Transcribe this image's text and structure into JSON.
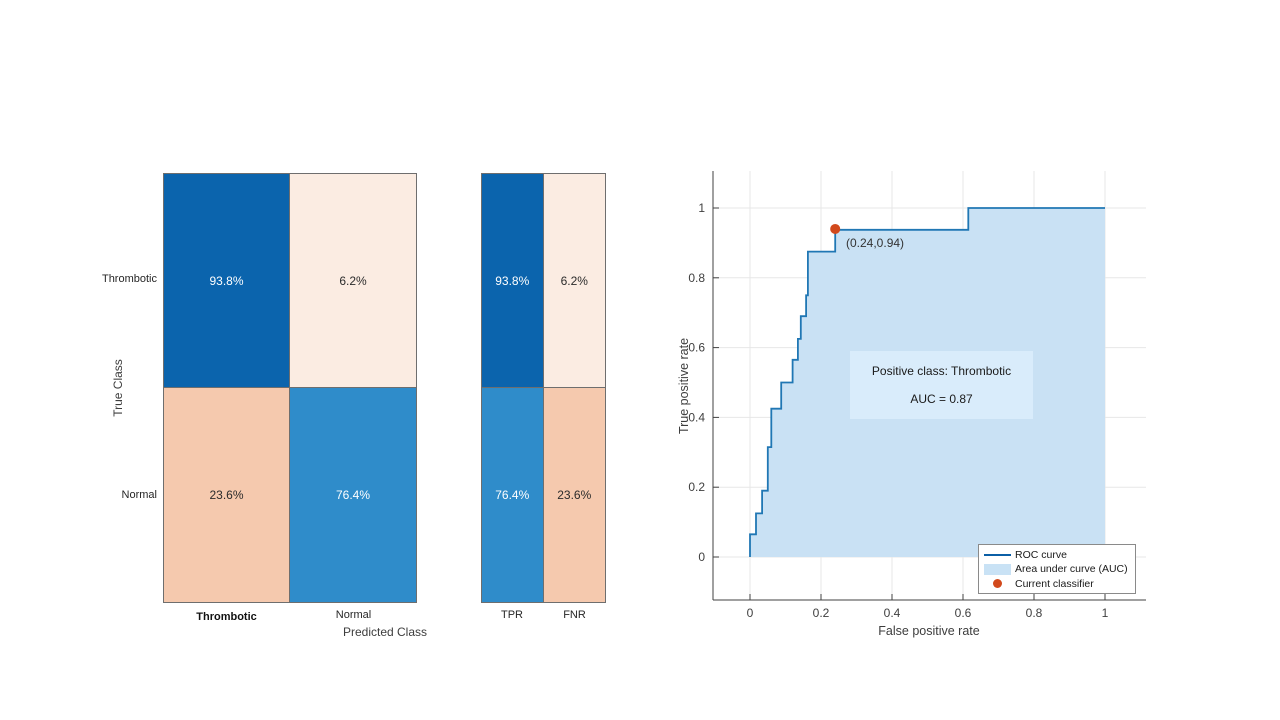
{
  "confusion_chart": {
    "ylabel": "True Class",
    "xlabel": "Predicted Class",
    "row_labels": [
      "Thrombotic",
      "Normal"
    ],
    "col_labels": [
      "Thrombotic",
      "Normal"
    ],
    "cells": [
      [
        {
          "text": "93.8%",
          "bg": "#0b64ad",
          "fg": "#ffffff"
        },
        {
          "text": "6.2%",
          "bg": "#fbece2",
          "fg": "#2b2b2b"
        }
      ],
      [
        {
          "text": "23.6%",
          "bg": "#f5c9ae",
          "fg": "#2b2b2b"
        },
        {
          "text": "76.4%",
          "bg": "#2f8cca",
          "fg": "#ffffff"
        }
      ]
    ]
  },
  "summary_chart": {
    "col_labels": [
      "TPR",
      "FNR"
    ],
    "cells": [
      [
        {
          "text": "93.8%",
          "bg": "#0b64ad",
          "fg": "#ffffff"
        },
        {
          "text": "6.2%",
          "bg": "#fbece2",
          "fg": "#2b2b2b"
        }
      ],
      [
        {
          "text": "76.4%",
          "bg": "#2f8cca",
          "fg": "#ffffff"
        },
        {
          "text": "23.6%",
          "bg": "#f5c9ae",
          "fg": "#2b2b2b"
        }
      ]
    ]
  },
  "roc_chart": {
    "xlabel": "False positive rate",
    "ylabel": "True positive rate",
    "marker_label": "(0.24,0.94)",
    "info_line1": "Positive class: Thrombotic",
    "info_line2": "AUC = 0.87",
    "legend": [
      {
        "icon": "line-icon",
        "label": "ROC curve"
      },
      {
        "icon": "patch-icon",
        "label": "Area under curve (AUC)"
      },
      {
        "icon": "dot-icon",
        "label": "Current classifier"
      }
    ],
    "colors": {
      "curve_line": "#2077b4",
      "area_fill": "#c9e1f4",
      "marker": "#d2491c",
      "grid": "#e7e7e7",
      "axis": "#424242",
      "tick_text": "#3f3f3f",
      "info_box_bg": "#d9ecfb"
    }
  },
  "chart_data": [
    {
      "type": "heatmap",
      "name": "confusion-matrix",
      "xlabel": "Predicted Class",
      "ylabel": "True Class",
      "x_categories": [
        "Thrombotic",
        "Normal"
      ],
      "y_categories": [
        "Thrombotic",
        "Normal"
      ],
      "values_percent": [
        [
          93.8,
          6.2
        ],
        [
          23.6,
          76.4
        ]
      ]
    },
    {
      "type": "heatmap",
      "name": "row-summary-tpr-fnr",
      "x_categories": [
        "TPR",
        "FNR"
      ],
      "y_categories": [
        "Thrombotic",
        "Normal"
      ],
      "values_percent": [
        [
          93.8,
          6.2
        ],
        [
          76.4,
          23.6
        ]
      ]
    },
    {
      "type": "line",
      "name": "roc-curve",
      "title": "",
      "xlabel": "False positive rate",
      "ylabel": "True positive rate",
      "xlim": [
        -0.1,
        1.12
      ],
      "ylim": [
        -0.12,
        1.1
      ],
      "xticks": [
        0,
        0.2,
        0.4,
        0.6,
        0.8,
        1
      ],
      "yticks": [
        0,
        0.2,
        0.4,
        0.6,
        0.8,
        1
      ],
      "grid": true,
      "legend_position": "bottom-right-inside",
      "positive_class": "Thrombotic",
      "auc": 0.87,
      "current_classifier": {
        "fpr": 0.24,
        "tpr": 0.94
      },
      "area_under_curve_shaded": true,
      "points": [
        [
          0,
          0
        ],
        [
          0,
          0.065
        ],
        [
          0.017,
          0.065
        ],
        [
          0.017,
          0.125
        ],
        [
          0.034,
          0.125
        ],
        [
          0.034,
          0.19
        ],
        [
          0.05,
          0.19
        ],
        [
          0.05,
          0.315
        ],
        [
          0.06,
          0.315
        ],
        [
          0.06,
          0.425
        ],
        [
          0.088,
          0.425
        ],
        [
          0.088,
          0.5
        ],
        [
          0.12,
          0.5
        ],
        [
          0.12,
          0.565
        ],
        [
          0.135,
          0.565
        ],
        [
          0.135,
          0.625
        ],
        [
          0.143,
          0.625
        ],
        [
          0.143,
          0.69
        ],
        [
          0.158,
          0.69
        ],
        [
          0.158,
          0.75
        ],
        [
          0.163,
          0.75
        ],
        [
          0.163,
          0.875
        ],
        [
          0.24,
          0.875
        ],
        [
          0.24,
          0.9375
        ],
        [
          0.615,
          0.9375
        ],
        [
          0.615,
          1
        ],
        [
          1,
          1
        ]
      ]
    }
  ]
}
